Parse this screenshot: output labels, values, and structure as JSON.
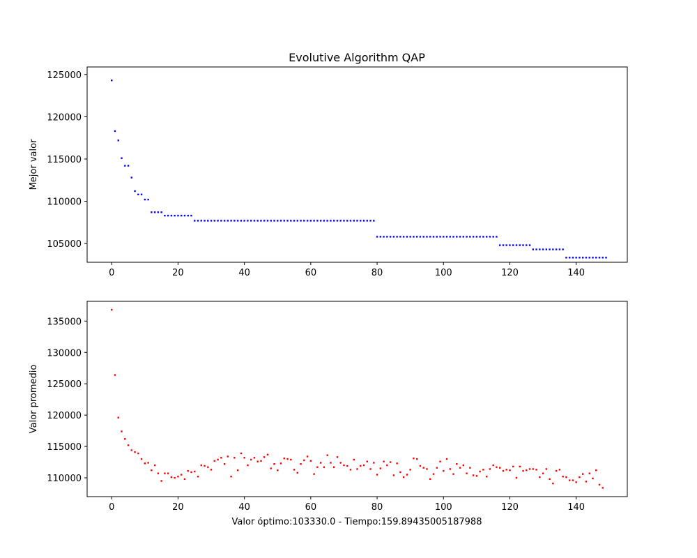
{
  "chart_data": [
    {
      "type": "scatter",
      "title": "Evolutive Algorithm QAP",
      "xlabel": "",
      "ylabel": "Mejor valor",
      "xlim": [
        -7.4,
        155.4
      ],
      "ylim": [
        102780,
        125890
      ],
      "xticks": [
        0,
        20,
        40,
        60,
        80,
        100,
        120,
        140
      ],
      "yticks": [
        105000,
        110000,
        115000,
        120000,
        125000
      ],
      "grid": false,
      "marker_color": "#0000ff",
      "series": [
        {
          "values": [
            124300,
            118300,
            117200,
            115100,
            114200,
            114200,
            112800,
            111200,
            110800,
            110800,
            110200,
            110200,
            108700,
            108700,
            108700,
            108700,
            108300,
            108300,
            108300,
            108300,
            108300,
            108300,
            108300,
            108300,
            108300,
            107700,
            107700,
            107700,
            107700,
            107700,
            107700,
            107700,
            107700,
            107700,
            107700,
            107700,
            107700,
            107700,
            107700,
            107700,
            107700,
            107700,
            107700,
            107700,
            107700,
            107700,
            107700,
            107700,
            107700,
            107700,
            107700,
            107700,
            107700,
            107700,
            107700,
            107700,
            107700,
            107700,
            107700,
            107700,
            107700,
            107700,
            107700,
            107700,
            107700,
            107700,
            107700,
            107700,
            107700,
            107700,
            107700,
            107700,
            107700,
            107700,
            107700,
            107700,
            107700,
            107700,
            107700,
            107700,
            105800,
            105800,
            105800,
            105800,
            105800,
            105800,
            105800,
            105800,
            105800,
            105800,
            105800,
            105800,
            105800,
            105800,
            105800,
            105800,
            105800,
            105800,
            105800,
            105800,
            105800,
            105800,
            105800,
            105800,
            105800,
            105800,
            105800,
            105800,
            105800,
            105800,
            105800,
            105800,
            105800,
            105800,
            105800,
            105800,
            105800,
            104800,
            104800,
            104800,
            104800,
            104800,
            104800,
            104800,
            104800,
            104800,
            104800,
            104300,
            104300,
            104300,
            104300,
            104300,
            104300,
            104300,
            104300,
            104300,
            104300,
            103330,
            103330,
            103330,
            103330,
            103330,
            103330,
            103330,
            103330,
            103330,
            103330,
            103330,
            103330,
            103330
          ]
        }
      ]
    },
    {
      "type": "scatter",
      "title": "",
      "xlabel": "Valor óptimo:103330.0 - Tiempo:159.89435005187988",
      "ylabel": "Valor promedio",
      "xlim": [
        -7.4,
        155.4
      ],
      "ylim": [
        107000,
        138150
      ],
      "xticks": [
        0,
        20,
        40,
        60,
        80,
        100,
        120,
        140
      ],
      "yticks": [
        110000,
        115000,
        120000,
        125000,
        130000,
        135000
      ],
      "grid": false,
      "marker_color": "#ff0000",
      "series": [
        {
          "values": [
            136800,
            126400,
            119600,
            117400,
            116200,
            115200,
            114400,
            114100,
            113900,
            113000,
            112300,
            112400,
            111200,
            112000,
            110700,
            109500,
            110700,
            110700,
            110100,
            110000,
            110200,
            110500,
            109800,
            111100,
            110900,
            111000,
            110200,
            112000,
            111900,
            111700,
            111300,
            112700,
            112900,
            113200,
            112200,
            113400,
            110200,
            113200,
            111200,
            113900,
            113200,
            112000,
            112900,
            113200,
            112600,
            112700,
            113300,
            113700,
            111500,
            112200,
            111200,
            112300,
            113100,
            113000,
            112900,
            111300,
            110800,
            112200,
            112800,
            113400,
            112700,
            110600,
            111700,
            112400,
            111700,
            113600,
            112400,
            111700,
            113300,
            112400,
            112000,
            111900,
            111300,
            112900,
            111400,
            111900,
            112000,
            112600,
            111400,
            112400,
            110500,
            111500,
            112600,
            112000,
            112500,
            110400,
            112300,
            110900,
            110100,
            110500,
            111300,
            113100,
            113000,
            111900,
            111600,
            111400,
            109800,
            110600,
            111600,
            112600,
            111100,
            113000,
            111400,
            110600,
            112200,
            111600,
            112000,
            110700,
            111600,
            110400,
            110300,
            111000,
            111300,
            110200,
            111400,
            112000,
            111700,
            111600,
            111100,
            111300,
            111200,
            111800,
            110000,
            111800,
            111100,
            111200,
            111400,
            111400,
            111300,
            110100,
            110700,
            111400,
            109800,
            109100,
            111100,
            111300,
            110200,
            110100,
            109600,
            109600,
            109300,
            110100,
            110600,
            109400,
            110700,
            109900,
            111200,
            108900,
            108400
          ]
        }
      ]
    }
  ]
}
